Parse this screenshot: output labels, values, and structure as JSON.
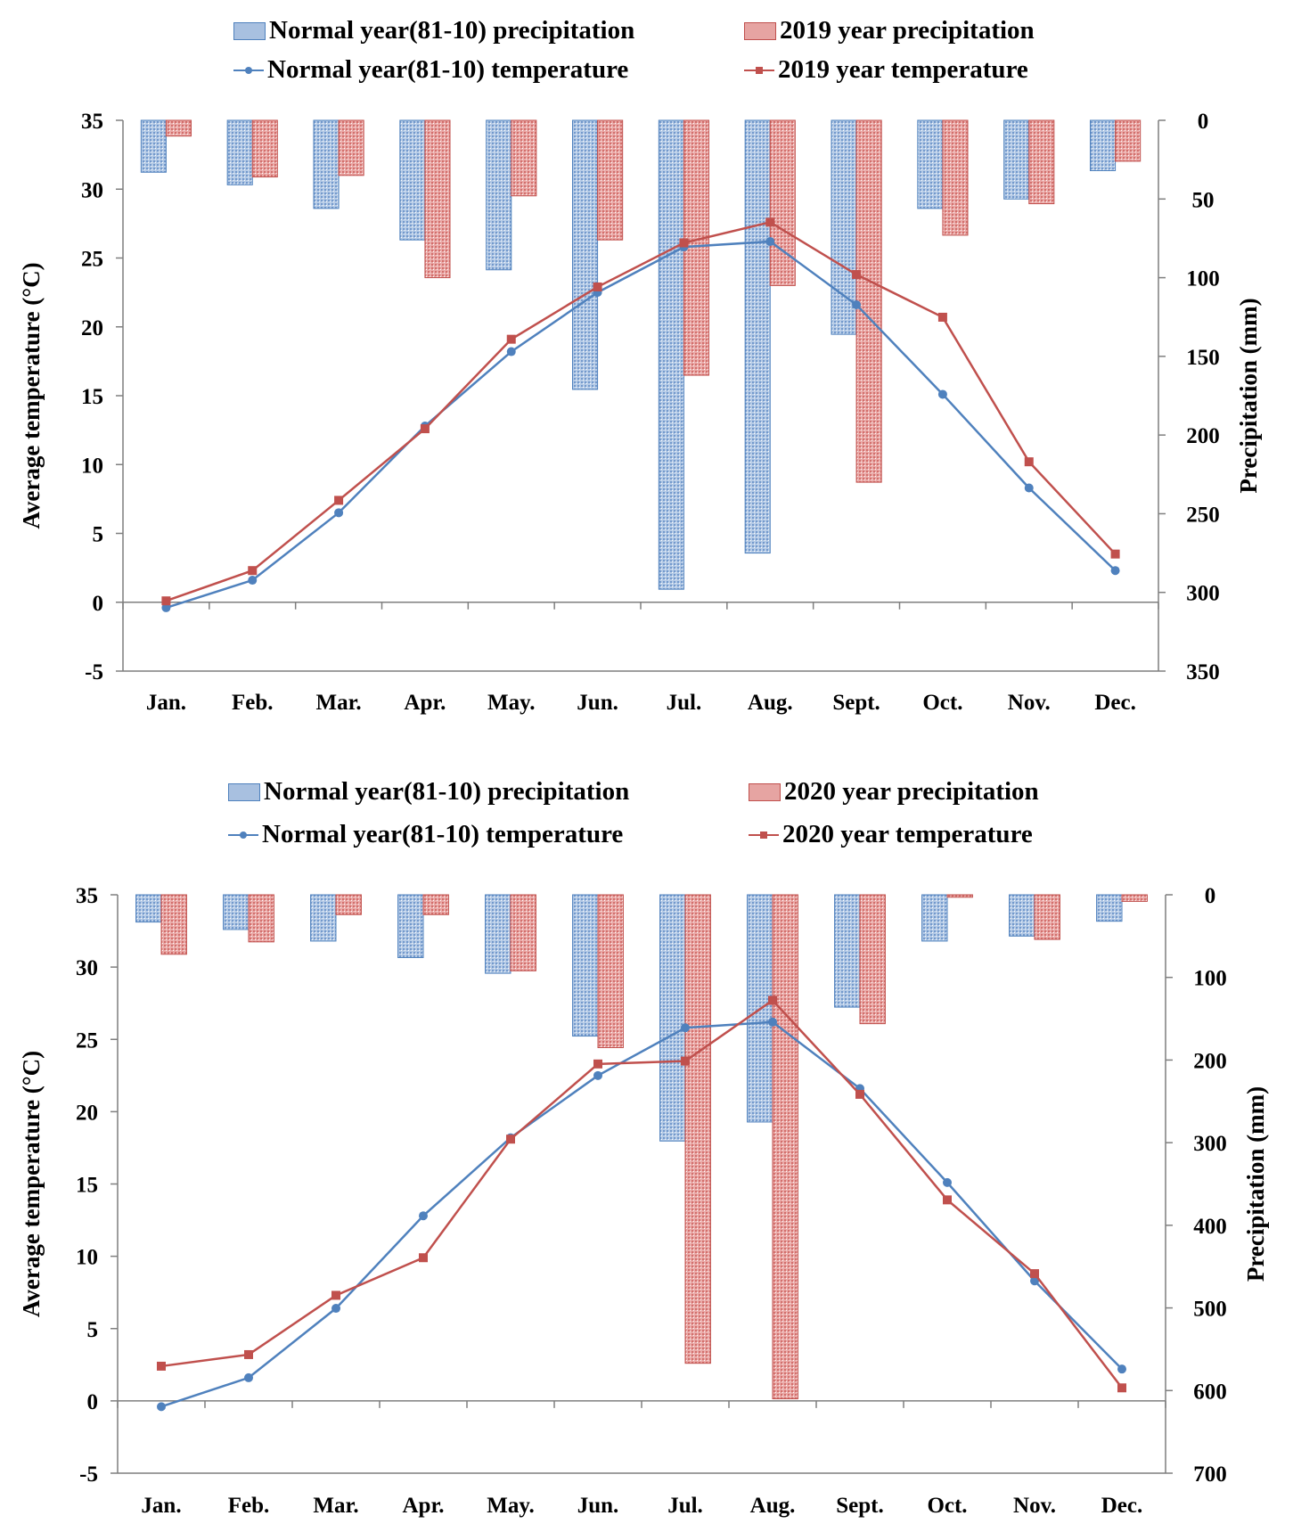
{
  "chart_data": [
    {
      "type": "bar+line",
      "title": "",
      "categories": [
        "Jan.",
        "Feb.",
        "Mar.",
        "Apr.",
        "May.",
        "Jun.",
        "Jul.",
        "Aug.",
        "Sept.",
        "Oct.",
        "Nov.",
        "Dec."
      ],
      "ylabel": "Average temperature (°C)",
      "y2label": "Precipitation (mm)",
      "ylim": [
        -5,
        35
      ],
      "y2lim": [
        0,
        350
      ],
      "yticks": [
        "35",
        "30",
        "25",
        "20",
        "15",
        "10",
        "5",
        "0",
        "-5"
      ],
      "y2ticks": [
        "0",
        "50",
        "100",
        "150",
        "200",
        "250",
        "300",
        "350"
      ],
      "y2_inverted": true,
      "bar_series": [
        {
          "name": "Normal year(81-10) precipitation",
          "color": "#4f81bd",
          "values": [
            33,
            41,
            56,
            76,
            95,
            171,
            298,
            275,
            136,
            56,
            50,
            32
          ]
        },
        {
          "name": "2019 year precipitation",
          "color": "#c0504d",
          "values": [
            10,
            36,
            35,
            100,
            48,
            76,
            162,
            105,
            230,
            73,
            53,
            26
          ]
        }
      ],
      "line_series": [
        {
          "name": "Normal year(81-10) temperature",
          "color": "#4f81bd",
          "marker": "circle",
          "values": [
            -0.4,
            1.6,
            6.5,
            12.8,
            18.2,
            22.5,
            25.8,
            26.2,
            21.6,
            15.1,
            8.3,
            2.3
          ]
        },
        {
          "name": "2019 year temperature",
          "color": "#c0504d",
          "marker": "square",
          "values": [
            0.1,
            2.3,
            7.4,
            12.6,
            19.1,
            22.9,
            26.1,
            27.6,
            23.8,
            20.7,
            10.2,
            3.5
          ]
        }
      ],
      "legend_position": "top"
    },
    {
      "type": "bar+line",
      "title": "",
      "categories": [
        "Jan.",
        "Feb.",
        "Mar.",
        "Apr.",
        "May.",
        "Jun.",
        "Jul.",
        "Aug.",
        "Sept.",
        "Oct.",
        "Nov.",
        "Dec."
      ],
      "ylabel": "Average temperature (°C)",
      "y2label": "Precipitation (mm)",
      "ylim": [
        -5,
        35
      ],
      "y2lim": [
        0,
        700
      ],
      "yticks": [
        "35",
        "30",
        "25",
        "20",
        "15",
        "10",
        "5",
        "0",
        "-5"
      ],
      "y2ticks": [
        "0",
        "100",
        "200",
        "300",
        "400",
        "500",
        "600",
        "700"
      ],
      "y2_inverted": true,
      "bar_series": [
        {
          "name": "Normal year(81-10) precipitation",
          "color": "#4f81bd",
          "values": [
            33,
            42,
            56,
            76,
            95,
            171,
            298,
            275,
            136,
            56,
            50,
            32
          ]
        },
        {
          "name": "2020 year precipitation",
          "color": "#c0504d",
          "values": [
            72,
            57,
            24,
            24,
            92,
            185,
            567,
            610,
            156,
            3,
            54,
            8
          ]
        }
      ],
      "line_series": [
        {
          "name": "Normal year(81-10) temperature",
          "color": "#4f81bd",
          "marker": "circle",
          "values": [
            -0.4,
            1.6,
            6.4,
            12.8,
            18.2,
            22.5,
            25.8,
            26.2,
            21.6,
            15.1,
            8.3,
            2.2
          ]
        },
        {
          "name": "2020 year temperature",
          "color": "#c0504d",
          "marker": "square",
          "values": [
            2.4,
            3.2,
            7.3,
            9.9,
            18.1,
            23.3,
            23.5,
            27.7,
            21.2,
            13.9,
            8.8,
            0.9
          ]
        }
      ],
      "legend_position": "top"
    }
  ]
}
